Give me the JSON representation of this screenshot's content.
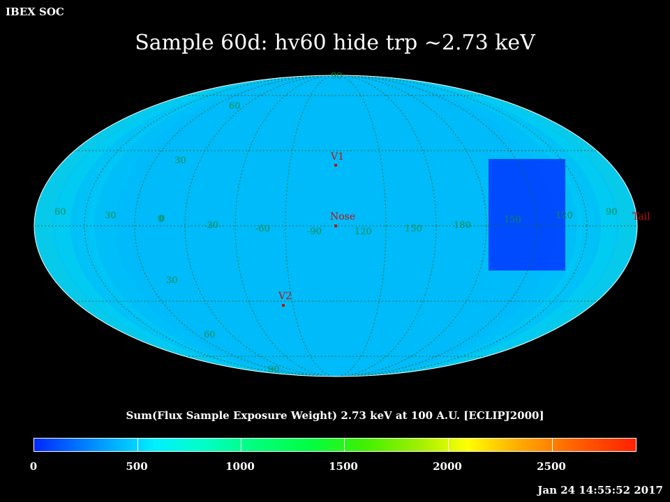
{
  "header": {
    "org": "IBEX SOC",
    "title": "Sample 60d: hv60 hide trp ~2.73 keV"
  },
  "colors": {
    "background": "#000000",
    "grid": "#0a8a4a",
    "marker": "#c01010"
  },
  "map": {
    "projection": "mollweide",
    "lat_labels": [
      "90",
      "60",
      "30",
      "0",
      "30",
      "60",
      "90"
    ],
    "lon_labels": [
      "60",
      "30",
      "0",
      "-30",
      "-60",
      "-90",
      "120",
      "150",
      "180",
      "150",
      "120",
      "90"
    ],
    "markers": [
      {
        "name": "V1",
        "label": "V1"
      },
      {
        "name": "Nose",
        "label": "Nose"
      },
      {
        "name": "V2",
        "label": "V2"
      },
      {
        "name": "Tail",
        "label": "Tail"
      }
    ]
  },
  "colorbar": {
    "title": "Sum(Flux Sample Exposure Weight)  2.73 keV at 100 A.U. [ECLIPJ2000]",
    "labels": [
      "0",
      "500",
      "1000",
      "1500",
      "2000",
      "2500"
    ]
  },
  "footer": {
    "timestamp": "Jan 24 14:55:52 2017"
  }
}
